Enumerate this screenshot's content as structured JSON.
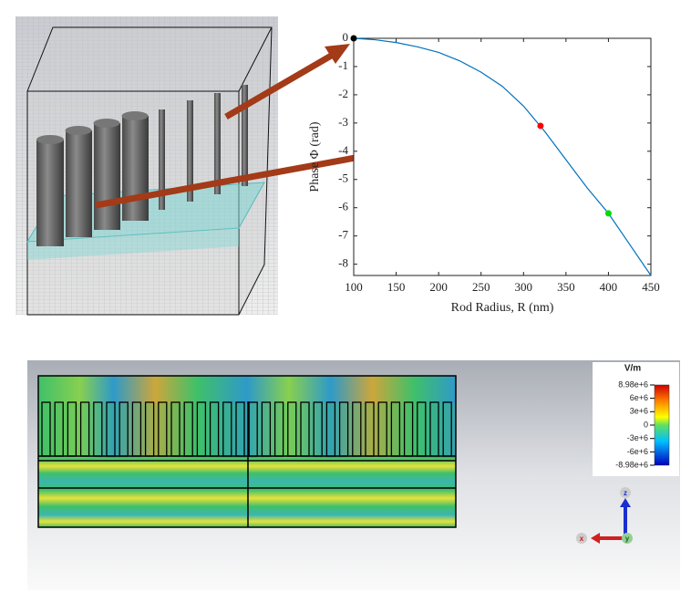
{
  "chart_data": {
    "type": "line",
    "x_label": "Rod Radius, R (nm)",
    "y_label": "Phase Φ (rad)",
    "x": [
      100,
      125,
      150,
      175,
      200,
      225,
      250,
      275,
      300,
      325,
      350,
      375,
      400,
      425,
      450
    ],
    "values": [
      0,
      -0.05,
      -0.15,
      -0.3,
      -0.5,
      -0.8,
      -1.2,
      -1.7,
      -2.4,
      -3.3,
      -4.3,
      -5.3,
      -6.2,
      -7.3,
      -8.4
    ],
    "color": "#0072bd",
    "points": [
      {
        "x": 100,
        "y": 0,
        "color": "#000000"
      },
      {
        "x": 320,
        "y": -3.1,
        "color": "#ff0000"
      },
      {
        "x": 400,
        "y": -6.2,
        "color": "#00dd00"
      }
    ],
    "xlim": [
      100,
      450
    ],
    "xticks": [
      100,
      150,
      200,
      250,
      300,
      350,
      400,
      450
    ],
    "ylim": [
      -8.4,
      0
    ],
    "yticks": [
      0,
      -1,
      -2,
      -3,
      -4,
      -5,
      -6,
      -7,
      -8
    ]
  },
  "colorbar": {
    "title": "V/m",
    "lim": [
      -8980000,
      8980000
    ],
    "ticks": [
      {
        "value": 8980000,
        "label": "8.98e+6"
      },
      {
        "value": 6000000,
        "label": "6e+6"
      },
      {
        "value": 3000000,
        "label": "3e+6"
      },
      0,
      {
        "value": -3000000,
        "label": "-3e+6"
      },
      {
        "value": -6000000,
        "label": "-6e+6"
      },
      {
        "value": -8980000,
        "label": "-8.98e+6"
      }
    ]
  },
  "axes_triad": {
    "z": "z",
    "x": "x",
    "y": "y"
  }
}
